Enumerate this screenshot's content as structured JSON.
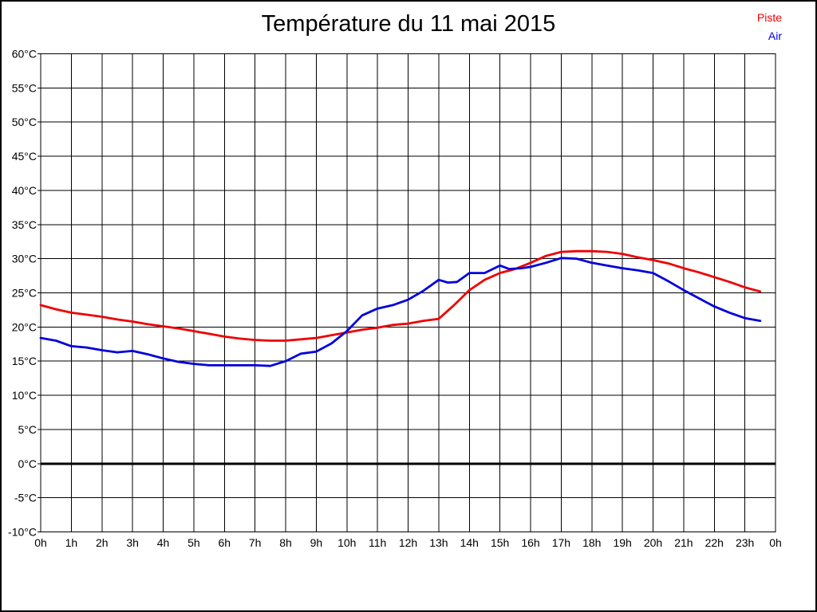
{
  "header": {
    "title": "Température du 11 mai 2015"
  },
  "legend": {
    "items": [
      {
        "label": "Piste",
        "color": "#ee0000"
      },
      {
        "label": "Air",
        "color": "#0000dd"
      }
    ]
  },
  "chart_data": {
    "type": "line",
    "title": "Température du 11 mai 2015",
    "xlabel": "",
    "ylabel": "",
    "x_unit": "hours",
    "xlim": [
      0,
      24
    ],
    "ylim": [
      -10,
      60
    ],
    "y_tick_step": 5,
    "grid": true,
    "zero_line_value": 0,
    "axis_color": "#000000",
    "x_tick_labels": [
      "0h",
      "1h",
      "2h",
      "3h",
      "4h",
      "5h",
      "6h",
      "7h",
      "8h",
      "9h",
      "10h",
      "11h",
      "12h",
      "13h",
      "14h",
      "15h",
      "16h",
      "17h",
      "18h",
      "19h",
      "20h",
      "21h",
      "22h",
      "23h",
      "0h"
    ],
    "y_tick_labels": [
      "60°C",
      "55°C",
      "50°C",
      "45°C",
      "40°C",
      "35°C",
      "30°C",
      "25°C",
      "20°C",
      "15°C",
      "10°C",
      "5°C",
      "0°C",
      "-5°C",
      "-10°C"
    ],
    "legend_position": "top-right",
    "series": [
      {
        "name": "Piste",
        "color": "#ee0000",
        "points": [
          [
            0,
            23.2
          ],
          [
            0.5,
            22.6
          ],
          [
            1,
            22.1
          ],
          [
            1.5,
            21.8
          ],
          [
            2,
            21.5
          ],
          [
            2.5,
            21.1
          ],
          [
            3,
            20.8
          ],
          [
            3.5,
            20.4
          ],
          [
            4,
            20.1
          ],
          [
            4.5,
            19.8
          ],
          [
            5,
            19.4
          ],
          [
            5.5,
            19.0
          ],
          [
            6,
            18.6
          ],
          [
            6.5,
            18.3
          ],
          [
            7,
            18.1
          ],
          [
            7.5,
            18.0
          ],
          [
            8,
            18.0
          ],
          [
            8.5,
            18.2
          ],
          [
            9,
            18.4
          ],
          [
            9.5,
            18.8
          ],
          [
            10,
            19.2
          ],
          [
            10.5,
            19.6
          ],
          [
            11,
            19.9
          ],
          [
            11.5,
            20.3
          ],
          [
            12,
            20.5
          ],
          [
            12.5,
            20.9
          ],
          [
            13,
            21.2
          ],
          [
            13.5,
            23.2
          ],
          [
            14,
            25.4
          ],
          [
            14.5,
            26.9
          ],
          [
            15,
            27.9
          ],
          [
            15.5,
            28.5
          ],
          [
            16,
            29.4
          ],
          [
            16.5,
            30.4
          ],
          [
            17,
            31.0
          ],
          [
            17.5,
            31.1
          ],
          [
            18,
            31.1
          ],
          [
            18.5,
            31.0
          ],
          [
            19,
            30.7
          ],
          [
            19.5,
            30.2
          ],
          [
            20,
            29.8
          ],
          [
            20.5,
            29.3
          ],
          [
            21,
            28.6
          ],
          [
            21.5,
            28.0
          ],
          [
            22,
            27.3
          ],
          [
            22.5,
            26.6
          ],
          [
            23,
            25.8
          ],
          [
            23.5,
            25.2
          ]
        ]
      },
      {
        "name": "Air",
        "color": "#0000dd",
        "points": [
          [
            0,
            18.4
          ],
          [
            0.5,
            18.0
          ],
          [
            1,
            17.2
          ],
          [
            1.5,
            17.0
          ],
          [
            2,
            16.6
          ],
          [
            2.5,
            16.3
          ],
          [
            3,
            16.5
          ],
          [
            3.5,
            16.0
          ],
          [
            4,
            15.4
          ],
          [
            4.5,
            14.9
          ],
          [
            5,
            14.6
          ],
          [
            5.5,
            14.4
          ],
          [
            6,
            14.4
          ],
          [
            6.5,
            14.4
          ],
          [
            7,
            14.4
          ],
          [
            7.5,
            14.3
          ],
          [
            8,
            15.0
          ],
          [
            8.5,
            16.1
          ],
          [
            9,
            16.4
          ],
          [
            9.5,
            17.6
          ],
          [
            10,
            19.4
          ],
          [
            10.5,
            21.7
          ],
          [
            11,
            22.7
          ],
          [
            11.5,
            23.2
          ],
          [
            12,
            24.0
          ],
          [
            12.5,
            25.3
          ],
          [
            13,
            26.9
          ],
          [
            13.3,
            26.5
          ],
          [
            13.6,
            26.6
          ],
          [
            14,
            27.9
          ],
          [
            14.5,
            27.9
          ],
          [
            15,
            29.0
          ],
          [
            15.3,
            28.5
          ],
          [
            15.7,
            28.6
          ],
          [
            16,
            28.8
          ],
          [
            16.5,
            29.4
          ],
          [
            17,
            30.1
          ],
          [
            17.5,
            30.0
          ],
          [
            18,
            29.4
          ],
          [
            18.5,
            29.0
          ],
          [
            19,
            28.6
          ],
          [
            19.5,
            28.3
          ],
          [
            20,
            27.9
          ],
          [
            20.5,
            26.7
          ],
          [
            21,
            25.4
          ],
          [
            21.5,
            24.2
          ],
          [
            22,
            23.0
          ],
          [
            22.5,
            22.1
          ],
          [
            23,
            21.3
          ],
          [
            23.5,
            20.9
          ]
        ]
      }
    ]
  }
}
